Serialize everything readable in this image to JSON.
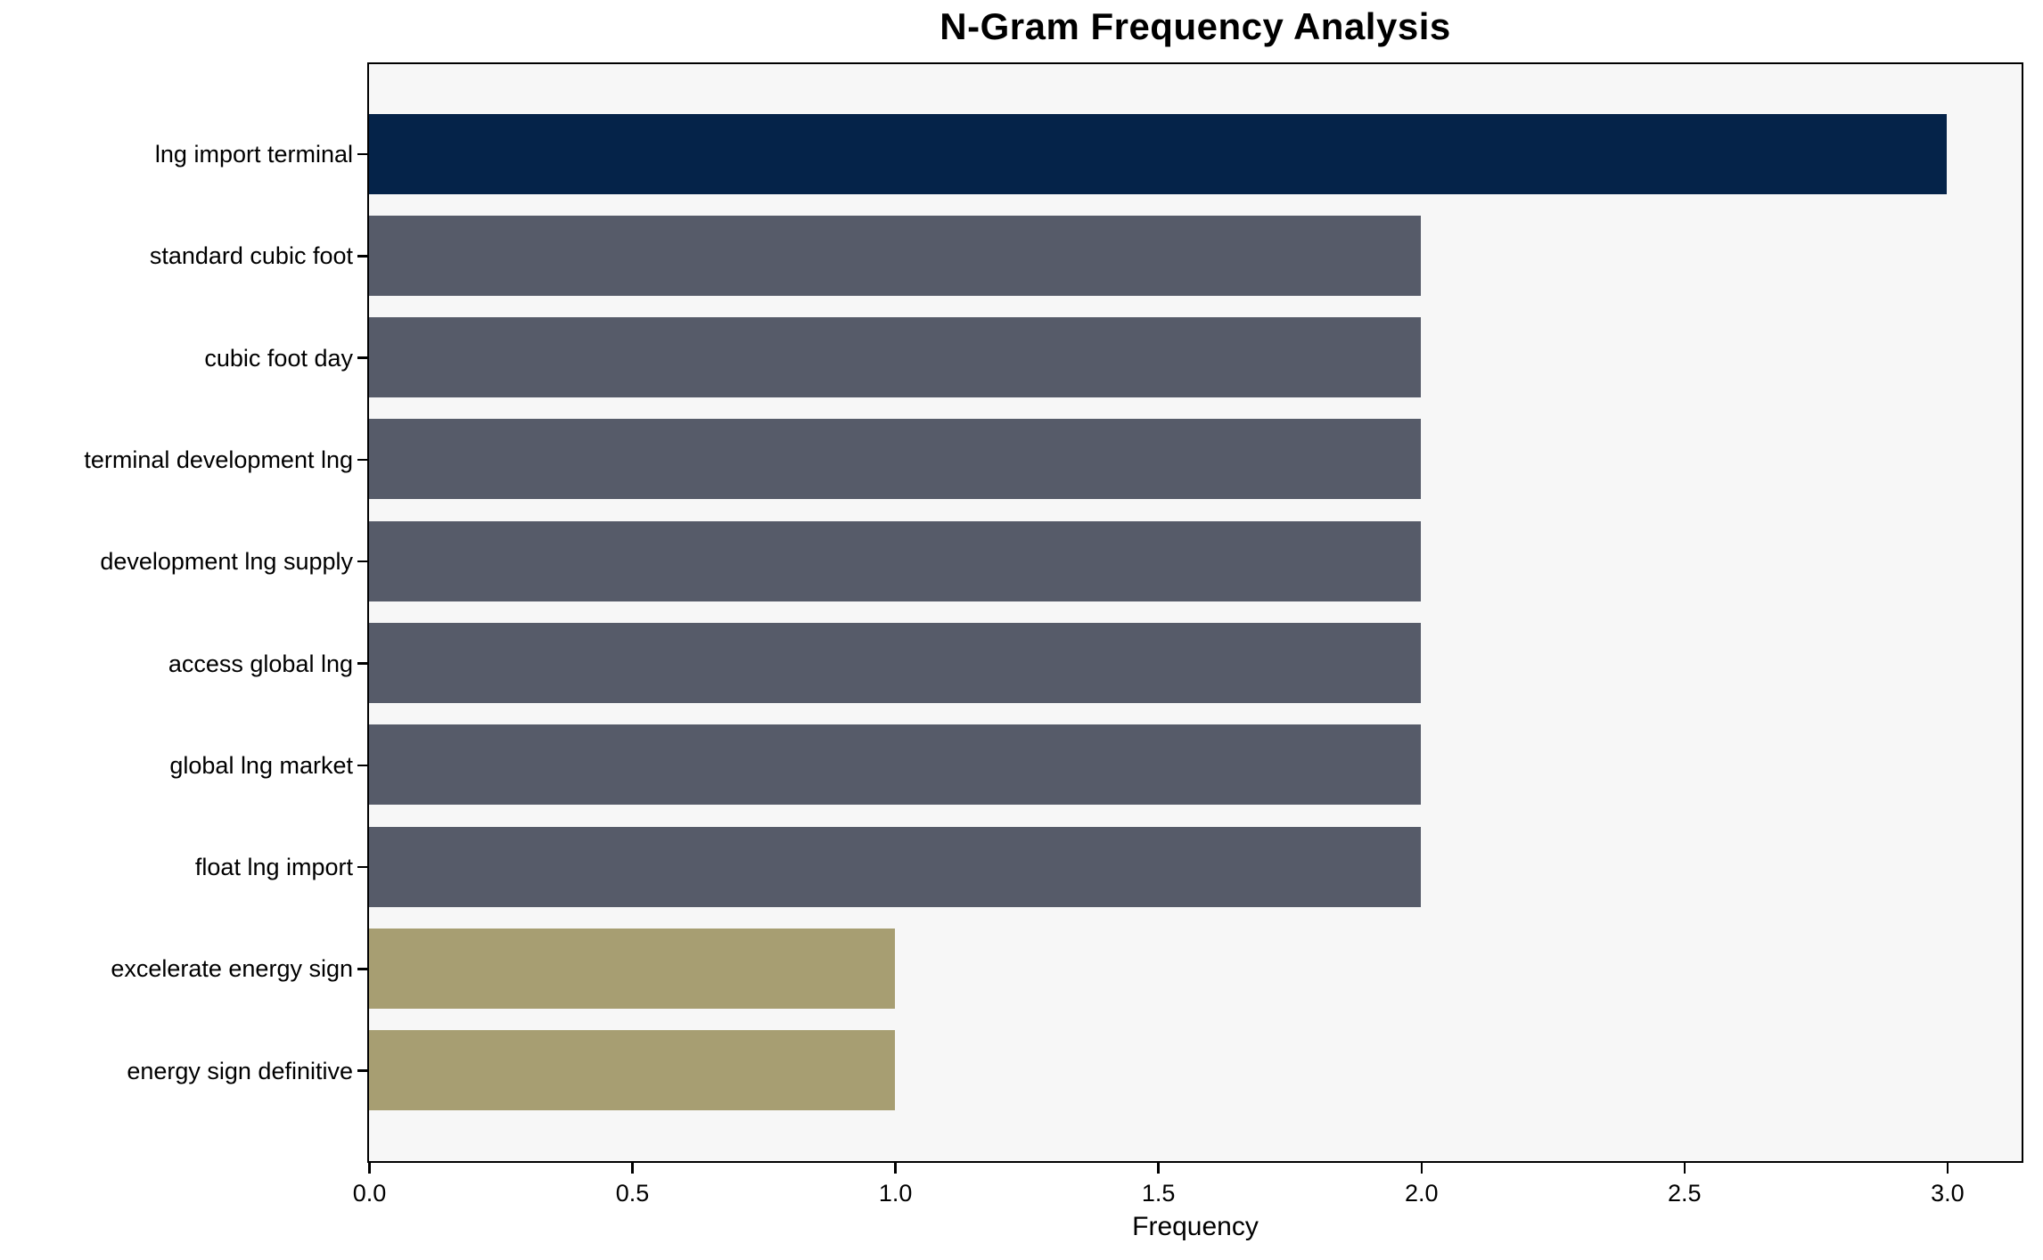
{
  "figure": {
    "background": "#ffffff",
    "plot_background": "#f7f7f7",
    "spine_color": "#000000",
    "text_color": "#000000"
  },
  "chart_data": {
    "type": "bar",
    "orientation": "horizontal",
    "title": "N-Gram Frequency Analysis",
    "xlabel": "Frequency",
    "ylabel": "",
    "categories": [
      "lng import terminal",
      "standard cubic foot",
      "cubic foot day",
      "terminal development lng",
      "development lng supply",
      "access global lng",
      "global lng market",
      "float lng import",
      "excelerate energy sign",
      "energy sign definitive"
    ],
    "values": [
      3,
      2,
      2,
      2,
      2,
      2,
      2,
      2,
      1,
      1
    ],
    "colors": [
      "#052349",
      "#565b69",
      "#565b69",
      "#565b69",
      "#565b69",
      "#565b69",
      "#565b69",
      "#565b69",
      "#a79e72",
      "#a79e72"
    ],
    "color_legend": {
      "high_freq": "#052349",
      "mid_freq": "#565b69",
      "low_freq": "#a79e72"
    },
    "x_ticks": [
      0.0,
      0.5,
      1.0,
      1.5,
      2.0,
      2.5,
      3.0
    ],
    "x_tick_labels": [
      "0.0",
      "0.5",
      "1.0",
      "1.5",
      "2.0",
      "2.5",
      "3.0"
    ],
    "xlim": [
      0,
      3.14
    ],
    "grid": false,
    "legend": false
  }
}
